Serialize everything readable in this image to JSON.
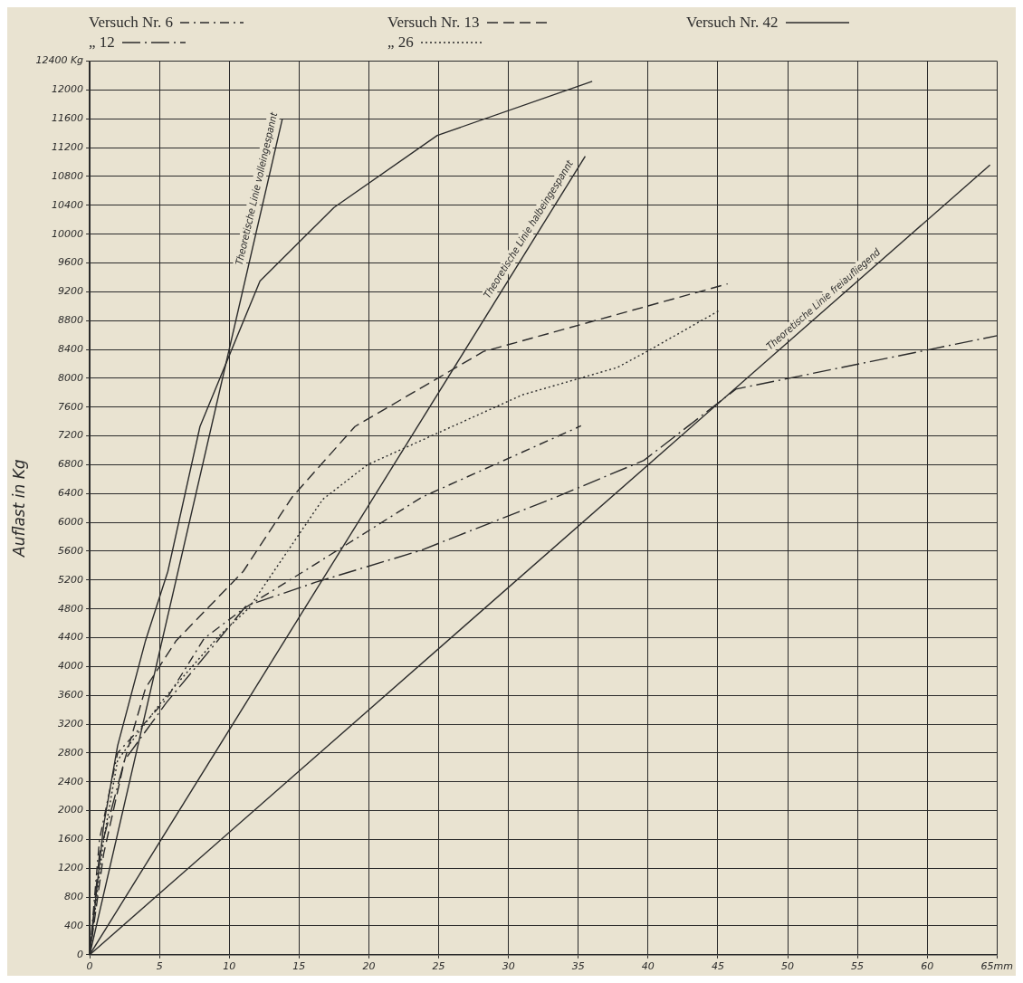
{
  "chart_data": {
    "type": "line",
    "ylabel": "Auflast in Kg",
    "xlim": [
      0,
      65
    ],
    "ylim": [
      0,
      12400
    ],
    "xticks": [
      0,
      5,
      10,
      15,
      20,
      25,
      30,
      35,
      40,
      45,
      50,
      55,
      60,
      {
        "value": 65,
        "label": "65mm"
      }
    ],
    "yticks": [
      0,
      400,
      800,
      1200,
      1600,
      2000,
      2400,
      2800,
      3200,
      3600,
      4000,
      4400,
      4800,
      5200,
      5600,
      6000,
      6400,
      6800,
      7200,
      7600,
      8000,
      8400,
      8800,
      9200,
      9600,
      10000,
      10400,
      10800,
      11200,
      11600,
      12000,
      {
        "value": 12400,
        "label": "12400 Kg"
      }
    ],
    "grid": true,
    "legend": "top",
    "marker": "none",
    "series": [
      {
        "name": "Versuch Nr. 6",
        "color": "#2b2b2b",
        "line_style": "dashdot",
        "x": [
          0,
          0.7,
          2,
          5.5,
          8.2,
          11,
          16,
          23.8,
          35.2
        ],
        "values": [
          0,
          1600,
          2800,
          3550,
          4390,
          4800,
          5400,
          6350,
          7340
        ]
      },
      {
        "name": "„ 12",
        "color": "#2b2b2b",
        "line_style": "longdashdot",
        "x": [
          0,
          0.7,
          2.5,
          5.5,
          8.5,
          11.2,
          16.2,
          23.7,
          33.4,
          39.7,
          46.3,
          65
        ],
        "values": [
          0,
          1400,
          2700,
          3500,
          4200,
          4840,
          5170,
          5610,
          6350,
          6860,
          7850,
          8590
        ]
      },
      {
        "name": "Versuch Nr. 13",
        "color": "#2b2b2b",
        "line_style": "dashed",
        "x": [
          0,
          1,
          2.5,
          4,
          6.2,
          11,
          14.5,
          19,
          28.2,
          45.7
        ],
        "values": [
          0,
          1400,
          2700,
          3700,
          4360,
          5320,
          6350,
          7330,
          8370,
          9310
        ]
      },
      {
        "name": "„ 26",
        "color": "#2b2b2b",
        "line_style": "dotted",
        "x": [
          0,
          1,
          2,
          5.3,
          9.3,
          11.4,
          16.7,
          19.9,
          31,
          37.8,
          40,
          45.1
        ],
        "values": [
          0,
          1600,
          2700,
          3550,
          4430,
          4810,
          6320,
          6800,
          7770,
          8150,
          8380,
          8940
        ]
      },
      {
        "name": "Versuch Nr. 42",
        "color": "#2b2b2b",
        "line_style": "solid",
        "x": [
          0,
          1,
          2,
          4,
          5.6,
          7.9,
          12.2,
          17.5,
          24.9,
          36
        ],
        "values": [
          0,
          1800,
          2900,
          4360,
          5320,
          7330,
          9350,
          10370,
          11370,
          12120
        ]
      },
      {
        "color": "#2b2b2b",
        "line_style": "solid",
        "x": [
          0,
          13.8
        ],
        "values": [
          0,
          11600
        ]
      },
      {
        "color": "#2b2b2b",
        "line_style": "solid",
        "x": [
          0,
          35.5
        ],
        "values": [
          0,
          11080
        ]
      },
      {
        "color": "#2b2b2b",
        "line_style": "solid",
        "x": [
          0,
          64.5
        ],
        "values": [
          0,
          10960
        ]
      }
    ],
    "annotations": [
      {
        "text": "Theoretische Linie volleingespannt",
        "x": 12.6,
        "y": 10600
      },
      {
        "text": "Theoretische Linie halbeingespannt",
        "x": 32,
        "y": 10000
      },
      {
        "text": "Theoretische Linie freiaufliegend",
        "x": 53,
        "y": 9000
      }
    ]
  }
}
